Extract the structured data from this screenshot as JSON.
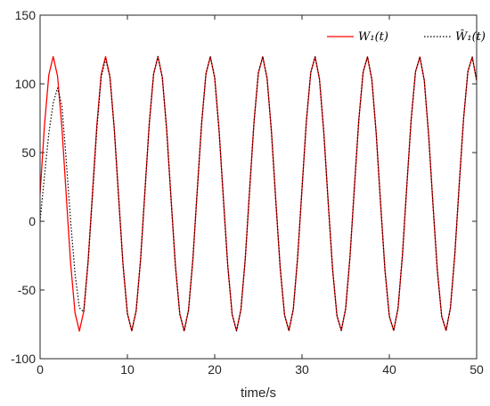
{
  "chart_data": {
    "type": "line",
    "title": "",
    "xlabel": "time/s",
    "ylabel": "",
    "xlim": [
      0,
      50
    ],
    "ylim": [
      -100,
      150
    ],
    "x_ticks": [
      "0",
      "10",
      "20",
      "30",
      "40",
      "50"
    ],
    "y_ticks": [
      "-100",
      "-50",
      "0",
      "50",
      "100",
      "150"
    ],
    "grid": false,
    "legend_position": "top-right",
    "series": [
      {
        "name": "W₁(t)",
        "color": "#ff0000",
        "style": "solid",
        "x": [
          0,
          0.5,
          1.0,
          1.5,
          2.0,
          2.5,
          3.0,
          3.5,
          4.0,
          4.5,
          5.0,
          5.5,
          6.0,
          6.5,
          7.0,
          7.5,
          8.0,
          8.5,
          9.0,
          9.5,
          10.0,
          10.5,
          11.0,
          11.5,
          12.0,
          12.5,
          13.0,
          13.5,
          14.0,
          14.5,
          15.0,
          15.5,
          16.0,
          16.5,
          17.0,
          17.5,
          18.0,
          18.5,
          19.0,
          19.5,
          20.0,
          20.5,
          21.0,
          21.5,
          22.0,
          22.5,
          23.0,
          23.5,
          24.0,
          24.5,
          25.0,
          25.5,
          26.0,
          26.5,
          27.0,
          27.5,
          28.0,
          28.5,
          29.0,
          29.5,
          30.0,
          30.5,
          31.0,
          31.5,
          32.0,
          32.5,
          33.0,
          33.5,
          34.0,
          34.5,
          35.0,
          35.5,
          36.0,
          36.5,
          37.0,
          37.5,
          38.0,
          38.5,
          39.0,
          39.5,
          40.0,
          40.5,
          41.0,
          41.5,
          42.0,
          42.5,
          43.0,
          43.5,
          44.0,
          44.5,
          45.0,
          45.5,
          46.0,
          46.5,
          47.0,
          47.5,
          48.0,
          48.5,
          49.0,
          49.5,
          50.0
        ],
        "values": [
          20.0,
          69.6,
          106.6,
          119.9,
          105.6,
          68.1,
          18.3,
          -30.7,
          -66.6,
          -79.9,
          -65.6,
          -28.9,
          20.7,
          69.9,
          107.0,
          119.9,
          105.1,
          67.0,
          17.0,
          -31.7,
          -67.1,
          -79.8,
          -65.2,
          -28.6,
          21.0,
          70.6,
          107.1,
          119.9,
          104.7,
          66.5,
          16.4,
          -32.4,
          -67.5,
          -79.8,
          -64.7,
          -27.7,
          22.3,
          71.2,
          107.5,
          119.8,
          104.5,
          66.1,
          16.0,
          -32.8,
          -67.8,
          -79.7,
          -64.4,
          -27.3,
          22.9,
          72.1,
          107.9,
          119.8,
          104.0,
          65.1,
          14.8,
          -33.9,
          -68.3,
          -79.6,
          -64.0,
          -26.2,
          23.8,
          72.9,
          108.3,
          119.7,
          103.4,
          64.2,
          13.6,
          -34.7,
          -68.7,
          -79.5,
          -63.5,
          -25.4,
          24.8,
          73.4,
          108.6,
          119.7,
          103.1,
          63.6,
          12.9,
          -35.4,
          -69.0,
          -79.5,
          -63.2,
          -24.8,
          25.5,
          74.0,
          108.9,
          119.6,
          102.7,
          63.0,
          12.2,
          -35.9,
          -69.3,
          -79.4,
          -62.9,
          -24.3,
          26.1,
          74.4,
          109.1,
          119.5,
          102.4
        ]
      },
      {
        "name": "Ŵ₁(t)",
        "color": "#000000",
        "style": "dotted",
        "x": [
          0,
          0.5,
          1.0,
          1.5,
          2.0,
          2.5,
          3.0,
          3.5,
          4.0,
          4.5,
          5.0,
          5.5,
          6.0,
          6.5,
          7.0,
          7.5,
          8.0,
          8.5,
          9.0,
          9.5,
          10.0,
          10.5,
          11.0,
          11.5,
          12.0,
          12.5,
          13.0,
          13.5,
          14.0,
          14.5,
          15.0,
          15.5,
          16.0,
          16.5,
          17.0,
          17.5,
          18.0,
          18.5,
          19.0,
          19.5,
          20.0,
          20.5,
          21.0,
          21.5,
          22.0,
          22.5,
          23.0,
          23.5,
          24.0,
          24.5,
          25.0,
          25.5,
          26.0,
          26.5,
          27.0,
          27.5,
          28.0,
          28.5,
          29.0,
          29.5,
          30.0,
          30.5,
          31.0,
          31.5,
          32.0,
          32.5,
          33.0,
          33.5,
          34.0,
          34.5,
          35.0,
          35.5,
          36.0,
          36.5,
          37.0,
          37.5,
          38.0,
          38.5,
          39.0,
          39.5,
          40.0,
          40.5,
          41.0,
          41.5,
          42.0,
          42.5,
          43.0,
          43.5,
          44.0,
          44.5,
          45.0,
          45.5,
          46.0,
          46.5,
          47.0,
          47.5,
          48.0,
          48.5,
          49.0,
          49.5,
          50.0
        ],
        "values": [
          0.0,
          33.0,
          64.0,
          86.0,
          97.0,
          84.0,
          44.0,
          0.0,
          -38.0,
          -63.0,
          -66.0,
          -30.0,
          18.0,
          67.0,
          105.0,
          118.0,
          105.1,
          67.0,
          17.0,
          -31.7,
          -67.1,
          -79.8,
          -65.2,
          -28.6,
          21.0,
          70.6,
          107.1,
          119.9,
          104.7,
          66.5,
          16.4,
          -32.4,
          -67.5,
          -79.8,
          -64.7,
          -27.7,
          22.3,
          71.2,
          107.5,
          119.8,
          104.5,
          66.1,
          16.0,
          -32.8,
          -67.8,
          -79.7,
          -64.4,
          -27.3,
          22.9,
          72.1,
          107.9,
          119.8,
          104.0,
          65.1,
          14.8,
          -33.9,
          -68.3,
          -79.6,
          -64.0,
          -26.2,
          23.8,
          72.9,
          108.3,
          119.7,
          103.4,
          64.2,
          13.6,
          -34.7,
          -68.7,
          -79.5,
          -63.5,
          -25.4,
          24.8,
          73.4,
          108.6,
          119.7,
          103.1,
          63.6,
          12.9,
          -35.4,
          -69.0,
          -79.5,
          -63.2,
          -24.8,
          25.5,
          74.0,
          108.9,
          119.6,
          102.7,
          63.0,
          12.2,
          -35.9,
          -69.3,
          -79.4,
          -62.9,
          -24.3,
          26.1,
          74.4,
          109.1,
          119.5,
          102.4
        ]
      }
    ]
  }
}
